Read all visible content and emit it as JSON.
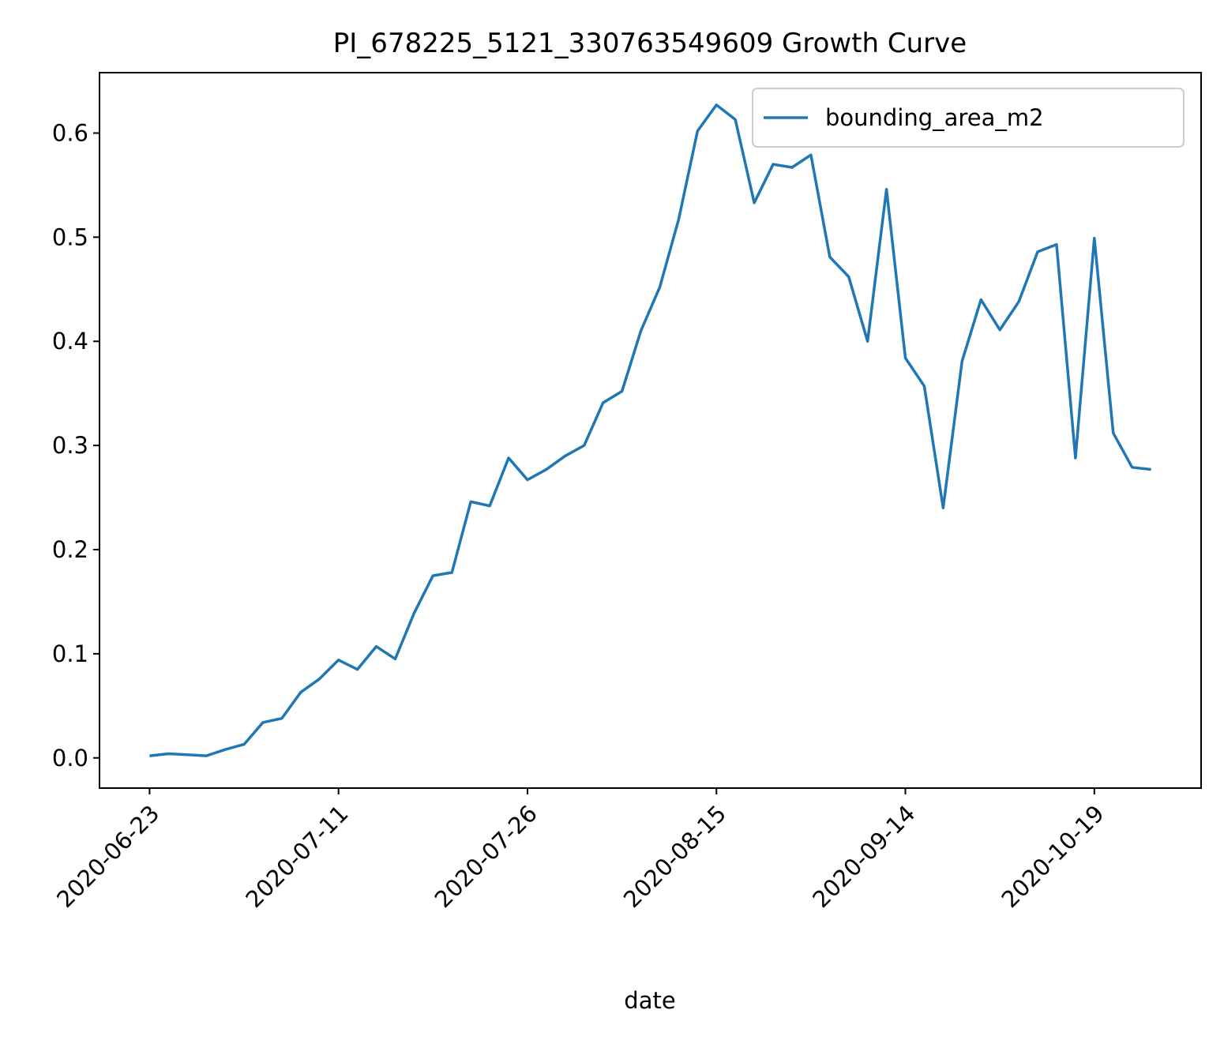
{
  "chart_data": {
    "type": "line",
    "title": "PI_678225_5121_330763549609 Growth Curve",
    "x_label": "date",
    "categories": [
      "2020-06-23",
      null,
      null,
      null,
      null,
      null,
      null,
      null,
      null,
      null,
      "2020-07-11",
      null,
      null,
      null,
      null,
      null,
      null,
      null,
      null,
      null,
      "2020-07-26",
      null,
      null,
      null,
      null,
      null,
      null,
      null,
      null,
      null,
      "2020-08-15",
      null,
      null,
      null,
      null,
      null,
      null,
      null,
      null,
      null,
      "2020-09-14",
      null,
      null,
      null,
      null,
      null,
      null,
      null,
      null,
      null,
      "2020-10-19",
      null,
      null,
      null
    ],
    "series": [
      {
        "name": "bounding_area_m2",
        "color": "#1f77b4",
        "values": [
          0.002,
          0.004,
          0.003,
          0.002,
          0.008,
          0.013,
          0.034,
          0.038,
          0.063,
          0.076,
          0.094,
          0.085,
          0.107,
          0.095,
          0.139,
          0.175,
          0.178,
          0.246,
          0.242,
          0.288,
          0.267,
          0.277,
          0.29,
          0.3,
          0.341,
          0.352,
          0.41,
          0.452,
          0.517,
          0.602,
          0.627,
          0.613,
          0.533,
          0.57,
          0.567,
          0.579,
          0.481,
          0.462,
          0.4,
          0.546,
          0.384,
          0.357,
          0.24,
          0.381,
          0.44,
          0.411,
          0.438,
          0.486,
          0.493,
          0.288,
          0.499,
          0.312,
          0.279,
          0.277
        ]
      }
    ],
    "ylim": [
      -0.029,
      0.658
    ],
    "yticks": [
      {
        "value": 0,
        "label": "0.0"
      },
      0.1,
      0.2,
      0.3,
      0.4,
      0.5,
      0.6
    ],
    "legend": "upper right",
    "grid": false
  }
}
